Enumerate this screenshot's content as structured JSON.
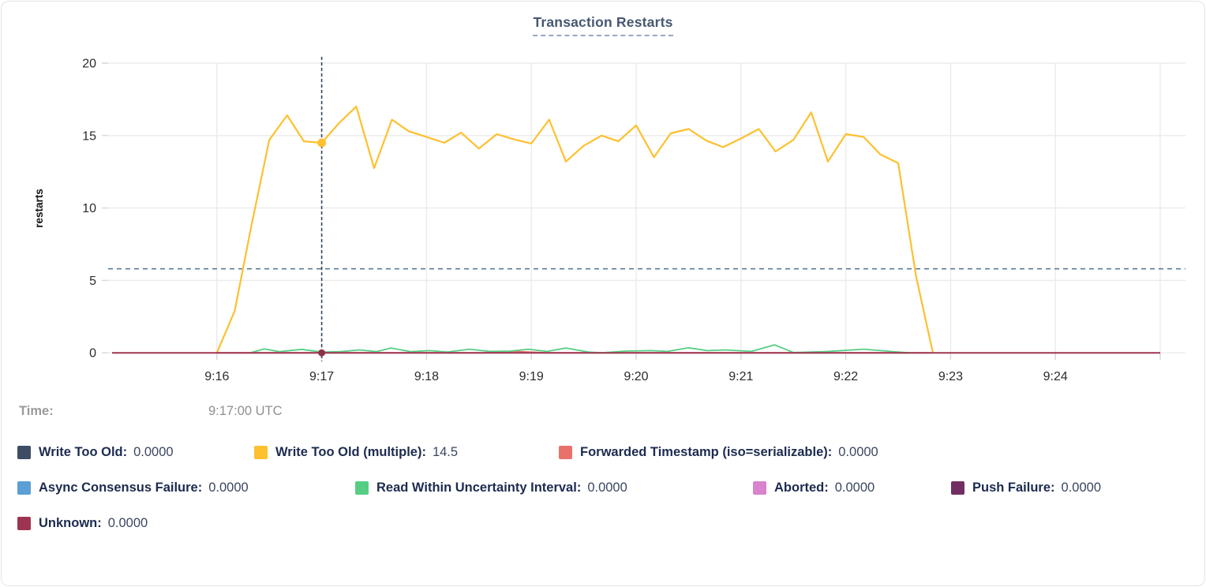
{
  "title": "Transaction Restarts",
  "time_row": {
    "label": "Time:",
    "value": "9:17:00 UTC"
  },
  "legend": {
    "items": [
      {
        "label": "Write Too Old:",
        "value": "0.0000",
        "color": "#3D4D66"
      },
      {
        "label": "Write Too Old (multiple):",
        "value": "14.5",
        "color": "#FDC02F"
      },
      {
        "label": "Forwarded Timestamp (iso=serializable):",
        "value": "0.0000",
        "color": "#E8726B"
      },
      {
        "label": "Async Consensus Failure:",
        "value": "0.0000",
        "color": "#5B9FD6"
      },
      {
        "label": "Read Within Uncertainty Interval:",
        "value": "0.0000",
        "color": "#55CE83"
      },
      {
        "label": "Aborted:",
        "value": "0.0000",
        "color": "#D883CB"
      },
      {
        "label": "Push Failure:",
        "value": "0.0000",
        "color": "#722D63"
      },
      {
        "label": "Unknown:",
        "value": "0.0000",
        "color": "#9E3550"
      }
    ]
  },
  "chart_data": {
    "type": "line",
    "title": "Transaction Restarts",
    "xlabel": "",
    "ylabel": "restarts",
    "ylim": [
      0,
      20
    ],
    "yticks": [
      0,
      5,
      10,
      15,
      20
    ],
    "x_domain_minutes": [
      0,
      10
    ],
    "x_domain_times": [
      "9:15",
      "9:25"
    ],
    "x_tick_labels": [
      "9:16",
      "9:17",
      "9:18",
      "9:19",
      "9:20",
      "9:21",
      "9:22",
      "9:23",
      "9:24"
    ],
    "grid": true,
    "legend_position": "bottom",
    "average_line_value": 5.8,
    "crosshair": {
      "time": "9:17:00 UTC",
      "x_minutes": 2,
      "dots": [
        {
          "series": "Write Too Old (multiple)",
          "value": 14.5,
          "color": "#FDC02F",
          "r": 5.5
        },
        {
          "series": "Unknown",
          "value": 0,
          "color": "#8E3049",
          "r": 4.5
        }
      ]
    },
    "series": [
      {
        "name": "Write Too Old",
        "color": "#3D4D66",
        "hover_value": 0.0,
        "width": 1.8,
        "points": []
      },
      {
        "name": "Write Too Old (multiple)",
        "color": "#FDC02F",
        "hover_value": 14.5,
        "width": 2.2,
        "points": [
          [
            1.0,
            0
          ],
          [
            1.17,
            2.9
          ],
          [
            1.33,
            8.8
          ],
          [
            1.5,
            14.7
          ],
          [
            1.67,
            16.4
          ],
          [
            1.83,
            14.6
          ],
          [
            2.0,
            14.5
          ],
          [
            2.17,
            15.9
          ],
          [
            2.33,
            17.0
          ],
          [
            2.5,
            12.75
          ],
          [
            2.67,
            16.1
          ],
          [
            2.83,
            15.3
          ],
          [
            3.0,
            14.9
          ],
          [
            3.17,
            14.5
          ],
          [
            3.33,
            15.2
          ],
          [
            3.5,
            14.1
          ],
          [
            3.67,
            15.1
          ],
          [
            3.83,
            14.75
          ],
          [
            4.0,
            14.45
          ],
          [
            4.17,
            16.1
          ],
          [
            4.33,
            13.2
          ],
          [
            4.5,
            14.3
          ],
          [
            4.67,
            15.0
          ],
          [
            4.83,
            14.6
          ],
          [
            5.0,
            15.7
          ],
          [
            5.17,
            13.5
          ],
          [
            5.33,
            15.15
          ],
          [
            5.5,
            15.45
          ],
          [
            5.67,
            14.65
          ],
          [
            5.83,
            14.2
          ],
          [
            6.0,
            14.8
          ],
          [
            6.17,
            15.45
          ],
          [
            6.33,
            13.9
          ],
          [
            6.5,
            14.7
          ],
          [
            6.67,
            16.6
          ],
          [
            6.83,
            13.2
          ],
          [
            7.0,
            15.1
          ],
          [
            7.17,
            14.9
          ],
          [
            7.33,
            13.7
          ],
          [
            7.5,
            13.1
          ],
          [
            7.67,
            5.3
          ],
          [
            7.83,
            0.05
          ]
        ]
      },
      {
        "name": "Forwarded Timestamp (iso=serializable)",
        "color": "#E8726B",
        "hover_value": 0.0,
        "width": 1.8,
        "points": [
          [
            1.0,
            0
          ],
          [
            3.55,
            0
          ],
          [
            3.7,
            0.07
          ],
          [
            3.85,
            0.1
          ],
          [
            4.0,
            0.05
          ],
          [
            4.15,
            0
          ],
          [
            7.8,
            0
          ]
        ]
      },
      {
        "name": "Async Consensus Failure",
        "color": "#5B9FD6",
        "hover_value": 0.0,
        "width": 1.8,
        "points": []
      },
      {
        "name": "Read Within Uncertainty Interval",
        "color": "#55CE83",
        "hover_value": 0.0,
        "width": 1.8,
        "points": [
          [
            1.33,
            0.02
          ],
          [
            1.45,
            0.27
          ],
          [
            1.6,
            0.08
          ],
          [
            1.81,
            0.24
          ],
          [
            2.0,
            0.05
          ],
          [
            2.18,
            0.08
          ],
          [
            2.36,
            0.2
          ],
          [
            2.52,
            0.08
          ],
          [
            2.66,
            0.33
          ],
          [
            2.85,
            0.08
          ],
          [
            3.03,
            0.15
          ],
          [
            3.2,
            0.06
          ],
          [
            3.41,
            0.25
          ],
          [
            3.6,
            0.1
          ],
          [
            3.8,
            0.12
          ],
          [
            3.97,
            0.25
          ],
          [
            4.15,
            0.1
          ],
          [
            4.33,
            0.33
          ],
          [
            4.55,
            0.05
          ],
          [
            4.67,
            0.0
          ],
          [
            4.9,
            0.12
          ],
          [
            5.14,
            0.15
          ],
          [
            5.3,
            0.1
          ],
          [
            5.5,
            0.35
          ],
          [
            5.68,
            0.15
          ],
          [
            5.85,
            0.2
          ],
          [
            6.1,
            0.1
          ],
          [
            6.32,
            0.55
          ],
          [
            6.5,
            0.02
          ],
          [
            6.8,
            0.08
          ],
          [
            7.17,
            0.25
          ],
          [
            7.6,
            0.0
          ]
        ]
      },
      {
        "name": "Aborted",
        "color": "#D883CB",
        "hover_value": 0.0,
        "width": 1.8,
        "points": []
      },
      {
        "name": "Push Failure",
        "color": "#722D63",
        "hover_value": 0.0,
        "width": 1.8,
        "points": []
      },
      {
        "name": "Unknown",
        "color": "#9E3550",
        "hover_value": 0.0,
        "width": 2.0,
        "points": [
          [
            0,
            0
          ],
          [
            10,
            0
          ]
        ]
      }
    ],
    "colors": {
      "gridline": "#ebebeb",
      "tick": "#d7d7d7",
      "axis_text": "#2b2b2b",
      "average_line": "#5a7b97",
      "crosshair": "#33465c"
    }
  }
}
